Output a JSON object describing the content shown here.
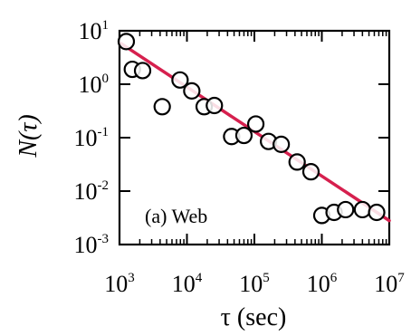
{
  "chart_data": {
    "type": "scatter",
    "title": "",
    "xlabel": "τ (sec)",
    "ylabel": "N(τ)",
    "x_scale": "log",
    "y_scale": "log",
    "xlim": [
      1000,
      10000000
    ],
    "ylim": [
      0.001,
      10
    ],
    "grid": false,
    "x_ticks": [
      {
        "base": "10",
        "exp": "3"
      },
      {
        "base": "10",
        "exp": "4"
      },
      {
        "base": "10",
        "exp": "5"
      },
      {
        "base": "10",
        "exp": "6"
      },
      {
        "base": "10",
        "exp": "7"
      }
    ],
    "y_ticks": [
      {
        "base": "10",
        "exp": "1"
      },
      {
        "base": "10",
        "exp": "0"
      },
      {
        "base": "10",
        "exp": "-1"
      },
      {
        "base": "10",
        "exp": "-2"
      },
      {
        "base": "10",
        "exp": "-3"
      }
    ],
    "annotation": "(a) Web",
    "series": [
      {
        "marker": "open-circle",
        "color": "#000000",
        "points": [
          [
            1260,
            6.3
          ],
          [
            1550,
            1.9
          ],
          [
            2200,
            1.8
          ],
          [
            4300,
            0.38
          ],
          [
            7900,
            1.2
          ],
          [
            11800,
            0.75
          ],
          [
            18000,
            0.38
          ],
          [
            25500,
            0.4
          ],
          [
            46000,
            0.105
          ],
          [
            70000,
            0.11
          ],
          [
            105000,
            0.18
          ],
          [
            162000,
            0.085
          ],
          [
            250000,
            0.075
          ],
          [
            430000,
            0.035
          ],
          [
            690000,
            0.023
          ],
          [
            1000000,
            0.0035
          ],
          [
            1520000,
            0.004
          ],
          [
            2250000,
            0.0045
          ],
          [
            4000000,
            0.0045
          ],
          [
            6500000,
            0.004
          ]
        ]
      },
      {
        "type": "line",
        "color": "#d6204e",
        "points": [
          [
            1050,
            5.8
          ],
          [
            10000000,
            0.0028
          ]
        ]
      }
    ]
  }
}
